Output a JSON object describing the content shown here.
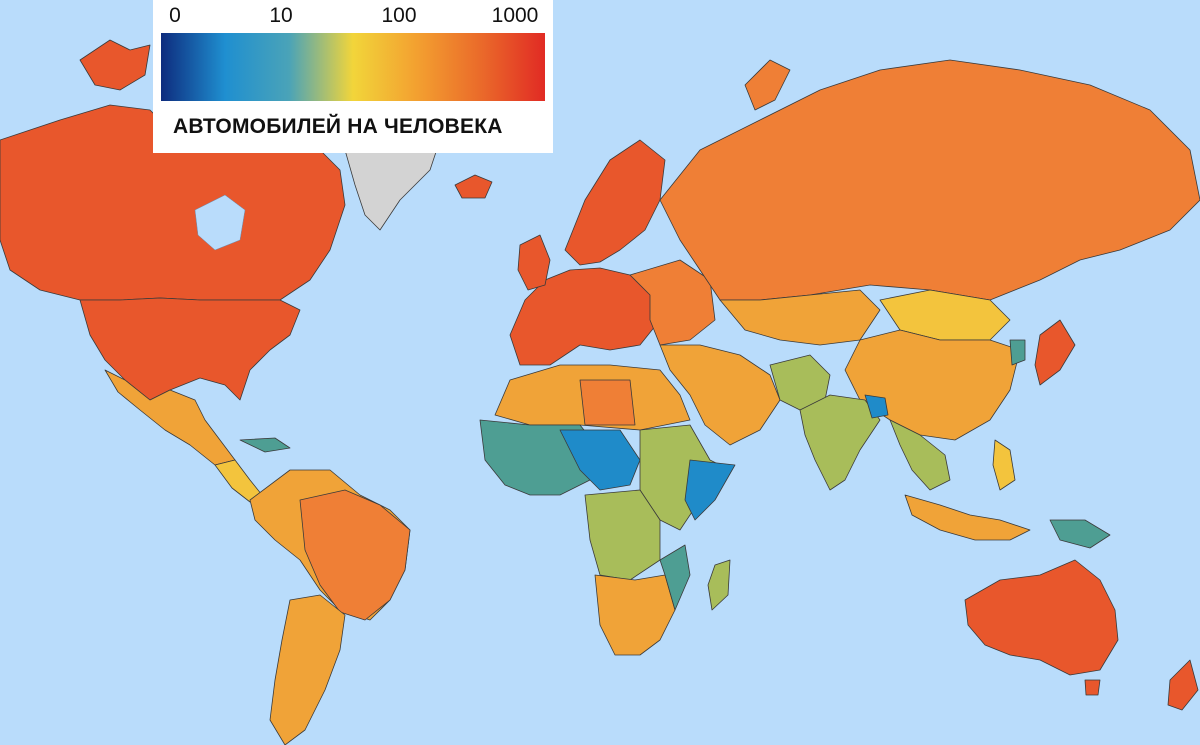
{
  "legend": {
    "ticks": [
      "0",
      "10",
      "100",
      "1000"
    ],
    "title": "АВТОМОБИЛЕЙ НА ЧЕЛОВЕКА",
    "scale_colors": [
      "#0e2c7e",
      "#1f8fd0",
      "#4aa3b8",
      "#f2d53a",
      "#f3a030",
      "#ea6a2a",
      "#e12b24"
    ]
  },
  "map": {
    "ocean_color": "#b9dcfb",
    "no_data_color": "#d3d3d3",
    "color_levels": {
      "very_high": "#e8572c",
      "high": "#ef7f36",
      "upper_mid": "#f0a338",
      "mid": "#f3c43d",
      "lower_mid": "#a8bd5a",
      "low": "#4e9e93",
      "very_low": "#1f8bc9"
    }
  }
}
